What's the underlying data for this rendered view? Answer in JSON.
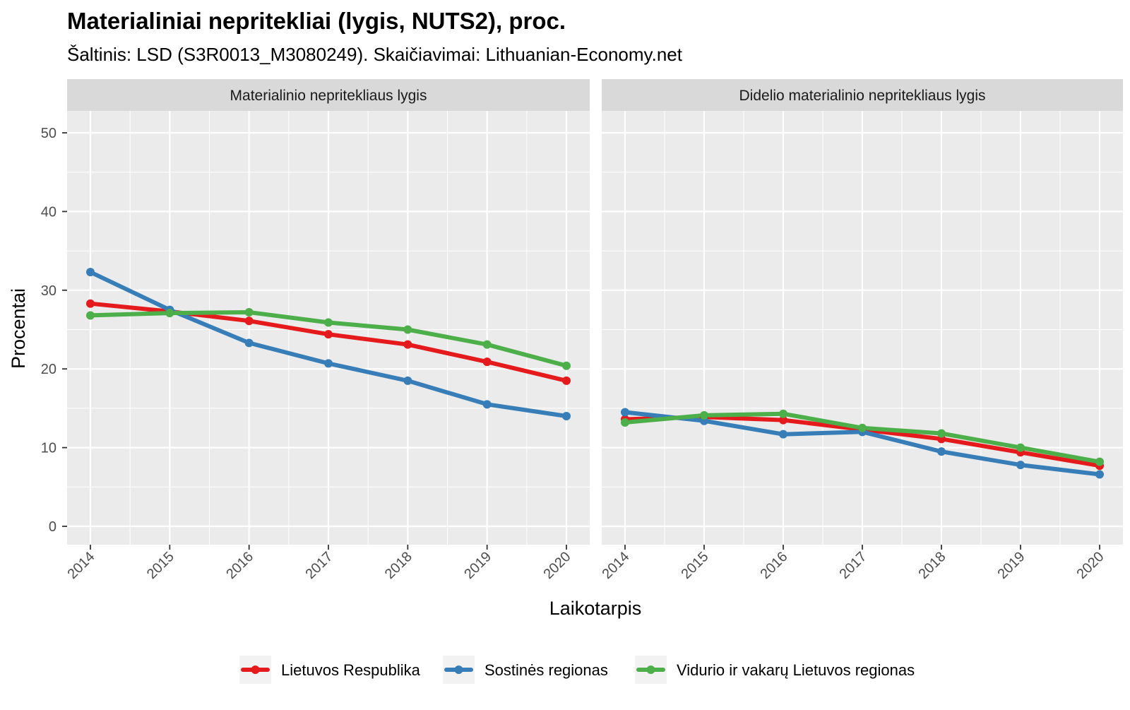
{
  "title": "Materialiniai nepritekliai (lygis, NUTS2), proc.",
  "subtitle": "Šaltinis: LSD (S3R0013_M3080249). Skaičiavimai: Lithuanian-Economy.net",
  "colors": {
    "panel_bg": "#EBEBEB",
    "strip_bg": "#D9D9D9",
    "grid": "#FFFFFF"
  },
  "chart_data": {
    "type": "line",
    "faceted": true,
    "x": [
      "2014",
      "2015",
      "2016",
      "2017",
      "2018",
      "2019",
      "2020"
    ],
    "xlabel": "Laikotarpis",
    "ylabel": "Procentai",
    "ylim": [
      0,
      50
    ],
    "yticks": [
      0,
      10,
      20,
      30,
      40,
      50
    ],
    "grid": true,
    "legend_position": "bottom",
    "series_styles": [
      {
        "name": "Lietuvos Respublika",
        "color": "#E41A1C"
      },
      {
        "name": "Sostinės regionas",
        "color": "#377EB8"
      },
      {
        "name": "Vidurio ir vakarų Lietuvos regionas",
        "color": "#4DAF4A"
      }
    ],
    "panels": [
      {
        "strip": "Materialinio nepritekliaus lygis",
        "series": [
          {
            "name": "Lietuvos Respublika",
            "color": "#E41A1C",
            "values": [
              28.3,
              27.3,
              26.1,
              24.4,
              23.1,
              20.9,
              18.5
            ]
          },
          {
            "name": "Sostinės regionas",
            "color": "#377EB8",
            "values": [
              32.3,
              27.5,
              23.3,
              20.7,
              18.5,
              15.5,
              14.0
            ]
          },
          {
            "name": "Vidurio ir vakarų Lietuvos regionas",
            "color": "#4DAF4A",
            "values": [
              26.8,
              27.1,
              27.2,
              25.9,
              25.0,
              23.1,
              20.4
            ]
          }
        ]
      },
      {
        "strip": "Didelio materialinio nepritekliaus lygis",
        "series": [
          {
            "name": "Lietuvos Respublika",
            "color": "#E41A1C",
            "values": [
              13.6,
              13.9,
              13.5,
              12.3,
              11.1,
              9.4,
              7.7
            ]
          },
          {
            "name": "Sostinės regionas",
            "color": "#377EB8",
            "values": [
              14.5,
              13.4,
              11.7,
              12.0,
              9.5,
              7.8,
              6.6
            ]
          },
          {
            "name": "Vidurio ir vakarų Lietuvos regionas",
            "color": "#4DAF4A",
            "values": [
              13.2,
              14.1,
              14.3,
              12.5,
              11.8,
              10.0,
              8.2
            ]
          }
        ]
      }
    ]
  }
}
